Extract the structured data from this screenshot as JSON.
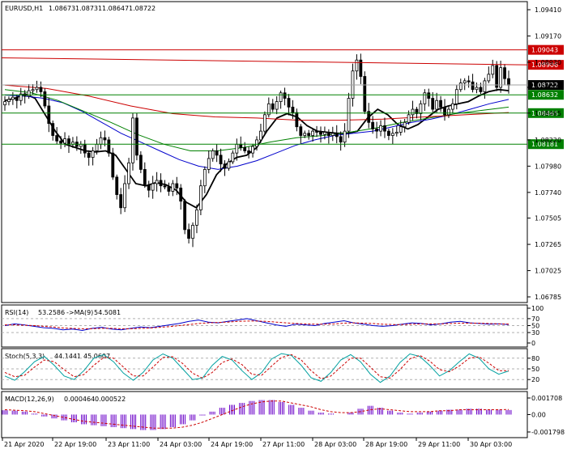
{
  "header": {
    "symbol": "EURUSD,H1",
    "ohlc": [
      "1.08673",
      "1.08731",
      "1.08647",
      "1.08722"
    ]
  },
  "colors": {
    "background": "#ffffff",
    "frame": "#000000",
    "level_line": "#008000",
    "resistance_line": "#cc0000",
    "price_tag_current": "#000000",
    "price_tag_green": "#008000",
    "price_tag_red": "#cc0000",
    "ma_black": "#000000",
    "ma_blue": "#0000cc",
    "ma_green": "#008000",
    "ma_red": "#cc0000",
    "candle": "#000000",
    "rsi_line": "#0000cc",
    "rsi_signal": "#cc0000",
    "stoch_main": "#00a0a0",
    "stoch_signal": "#cc0000",
    "macd_hist": "#6a00c8",
    "macd_signal": "#cc0000"
  },
  "chart_data": [
    {
      "type": "candlestick",
      "series": [
        {
          "name": "EURUSD,H1"
        }
      ],
      "y_ticks": [
        "1.09410",
        "1.09170",
        "1.08930",
        "1.08700",
        "1.08465",
        "1.08220",
        "1.07980",
        "1.07740",
        "1.07505",
        "1.07265",
        "1.07025",
        "1.06785"
      ],
      "ylim": [
        1.06785,
        1.0941
      ],
      "x_ticks": [
        "21 Apr 2020",
        "22 Apr 19:00",
        "23 Apr 11:00",
        "24 Apr 03:00",
        "24 Apr 19:00",
        "27 Apr 11:00",
        "28 Apr 03:00",
        "28 Apr 19:00",
        "29 Apr 11:00",
        "30 Apr 03:00"
      ],
      "horizontal_levels": [
        {
          "value": 1.08632,
          "label": "1.08632",
          "color": "#008000"
        },
        {
          "value": 1.08465,
          "label": "1.08465",
          "color": "#008000"
        },
        {
          "value": 1.08181,
          "label": "1.08181",
          "color": "#008000"
        },
        {
          "value": 1.09043,
          "label": "1.09043",
          "color": "#cc0000"
        }
      ],
      "trend_line": {
        "label": "1.08906",
        "from": 1.0897,
        "to": 1.08906,
        "color": "#cc0000"
      },
      "current_price": {
        "value": 1.08722,
        "label": "1.08722"
      },
      "close_path": [
        1.0857,
        1.0859,
        1.0861,
        1.0858,
        1.0864,
        1.0862,
        1.0867,
        1.0868,
        1.087,
        1.0866,
        1.0853,
        1.0837,
        1.0826,
        1.0821,
        1.0819,
        1.0823,
        1.0818,
        1.082,
        1.0816,
        1.0818,
        1.081,
        1.0806,
        1.0812,
        1.0818,
        1.0824,
        1.0822,
        1.081,
        1.0788,
        1.0772,
        1.076,
        1.0782,
        1.0801,
        1.0842,
        1.0808,
        1.0795,
        1.0781,
        1.0776,
        1.0782,
        1.0785,
        1.078,
        1.0779,
        1.0775,
        1.0782,
        1.0778,
        1.0766,
        1.074,
        1.0732,
        1.0744,
        1.0758,
        1.078,
        1.0795,
        1.0805,
        1.0812,
        1.0808,
        1.08,
        1.0796,
        1.0802,
        1.081,
        1.0818,
        1.0815,
        1.0812,
        1.081,
        1.0816,
        1.0822,
        1.083,
        1.0845,
        1.0855,
        1.085,
        1.0857,
        1.0865,
        1.086,
        1.0852,
        1.0847,
        1.0834,
        1.0826,
        1.0828,
        1.0826,
        1.083,
        1.0829,
        1.0827,
        1.0829,
        1.0826,
        1.0828,
        1.0825,
        1.082,
        1.083,
        1.086,
        1.0885,
        1.0895,
        1.088,
        1.0848,
        1.0838,
        1.0832,
        1.083,
        1.0835,
        1.083,
        1.0826,
        1.0828,
        1.0829,
        1.0834,
        1.0838,
        1.0845,
        1.085,
        1.0846,
        1.0855,
        1.0865,
        1.086,
        1.085,
        1.0858,
        1.0852,
        1.0845,
        1.085,
        1.0855,
        1.0868,
        1.0874,
        1.0876,
        1.0875,
        1.0868,
        1.087,
        1.0866,
        1.0876,
        1.0882,
        1.089,
        1.087,
        1.0888,
        1.0878,
        1.0872
      ],
      "ma_lines": [
        {
          "name": "black",
          "color": "#000000",
          "points": [
            1.0858,
            1.086,
            1.0864,
            1.086,
            1.0845,
            1.083,
            1.0818,
            1.0815,
            1.0812,
            1.0811,
            1.0812,
            1.0808,
            1.0795,
            1.0782,
            1.078,
            1.0783,
            1.0781,
            1.0776,
            1.0765,
            1.076,
            1.0772,
            1.079,
            1.08,
            1.0806,
            1.0808,
            1.0815,
            1.083,
            1.0842,
            1.0846,
            1.0843,
            1.0835,
            1.083,
            1.0829,
            1.0828,
            1.0828,
            1.083,
            1.0842,
            1.085,
            1.0845,
            1.0836,
            1.0832,
            1.0836,
            1.0843,
            1.085,
            1.0853,
            1.0855,
            1.0857,
            1.0862,
            1.0866,
            1.0868,
            1.0867
          ]
        },
        {
          "name": "blue",
          "color": "#0000cc",
          "points": [
            1.0863,
            1.0862,
            1.086,
            1.0856,
            1.0848,
            1.0838,
            1.0828,
            1.082,
            1.0812,
            1.0804,
            1.0798,
            1.0795,
            1.0798,
            1.0803,
            1.081,
            1.0817,
            1.0822,
            1.0826,
            1.0828,
            1.083,
            1.0834,
            1.0838,
            1.0841,
            1.0845,
            1.085,
            1.0855,
            1.0859
          ]
        },
        {
          "name": "green",
          "color": "#008000",
          "points": [
            1.0868,
            1.0865,
            1.0858,
            1.0848,
            1.0838,
            1.0827,
            1.0818,
            1.0812,
            1.0812,
            1.0815,
            1.082,
            1.0824,
            1.0826,
            1.0829,
            1.0833,
            1.0838,
            1.0842,
            1.0846,
            1.0849,
            1.0852
          ]
        },
        {
          "name": "red",
          "color": "#cc0000",
          "points": [
            1.0872,
            1.0869,
            1.0862,
            1.0853,
            1.0846,
            1.0843,
            1.0842,
            1.084,
            1.084,
            1.0841,
            1.0843,
            1.0845,
            1.0847
          ]
        }
      ]
    },
    {
      "type": "line",
      "title": "RSI(14) 53.2586 ->MA(9) 54.5081",
      "title_parts": {
        "name": "RSI(14)",
        "value": "53.2586",
        "ma": "->MA(9)",
        "ma_value": "54.5081"
      },
      "y_ticks": [
        "100",
        "70",
        "50",
        "30",
        "0"
      ],
      "ylim": [
        0,
        100
      ],
      "levels": [
        70,
        50,
        30
      ],
      "series": [
        {
          "name": "RSI(14)",
          "color": "#0000cc",
          "values": [
            50,
            55,
            52,
            48,
            44,
            42,
            38,
            40,
            36,
            42,
            45,
            40,
            38,
            42,
            46,
            44,
            48,
            52,
            56,
            62,
            66,
            60,
            58,
            62,
            66,
            70,
            64,
            58,
            52,
            48,
            54,
            52,
            50,
            56,
            60,
            64,
            58,
            54,
            50,
            48,
            50,
            54,
            58,
            56,
            52,
            55,
            60,
            62,
            58,
            56,
            54,
            55,
            53
          ]
        },
        {
          "name": "MA(9)",
          "color": "#cc0000",
          "values": [
            52,
            52,
            51,
            50,
            48,
            46,
            43,
            42,
            41,
            41,
            42,
            42,
            41,
            41,
            42,
            43,
            45,
            47,
            50,
            53,
            56,
            58,
            59,
            60,
            62,
            63,
            63,
            62,
            60,
            58,
            56,
            55,
            54,
            54,
            55,
            57,
            58,
            57,
            56,
            54,
            53,
            53,
            54,
            55,
            55,
            55,
            56,
            57,
            57,
            57,
            56,
            55,
            54.5
          ]
        }
      ]
    },
    {
      "type": "line",
      "title": "Stoch(5,3,3) 44.1441 45.0607",
      "title_parts": {
        "name": "Stoch(5,3,3)",
        "main": "44.1441",
        "signal": "45.0607"
      },
      "y_ticks": [
        "80",
        "50",
        "20"
      ],
      "ylim": [
        0,
        100
      ],
      "levels": [
        80,
        50,
        20
      ],
      "series": [
        {
          "name": "Main",
          "color": "#00a0a0",
          "values": [
            30,
            18,
            42,
            70,
            85,
            60,
            30,
            20,
            45,
            80,
            90,
            70,
            38,
            18,
            40,
            75,
            92,
            80,
            50,
            20,
            24,
            60,
            85,
            75,
            45,
            20,
            40,
            78,
            93,
            88,
            60,
            25,
            15,
            40,
            75,
            90,
            70,
            35,
            12,
            30,
            68,
            92,
            85,
            60,
            30,
            45,
            70,
            92,
            80,
            50,
            35,
            44
          ]
        },
        {
          "name": "Signal",
          "color": "#cc0000",
          "values": [
            40,
            28,
            32,
            55,
            75,
            70,
            48,
            28,
            34,
            60,
            82,
            80,
            55,
            30,
            30,
            55,
            82,
            84,
            65,
            38,
            24,
            40,
            68,
            78,
            62,
            35,
            32,
            58,
            82,
            90,
            75,
            45,
            22,
            30,
            55,
            80,
            80,
            55,
            28,
            24,
            48,
            78,
            88,
            72,
            48,
            42,
            58,
            80,
            84,
            66,
            45,
            45
          ]
        }
      ]
    },
    {
      "type": "bar",
      "title": "MACD(12,26,9) 0.000464 0.000522",
      "title_parts": {
        "name": "MACD(12,26,9)",
        "main": "0.000464",
        "signal": "0.000522"
      },
      "y_ticks": [
        "0.001708",
        "0.00",
        "-0.001798"
      ],
      "ylim": [
        -0.001798,
        0.001708
      ],
      "series": [
        {
          "name": "MACD",
          "color": "#6a00c8",
          "values": [
            0.00045,
            0.0004,
            0.0003,
            0.0001,
            -0.0002,
            -0.0004,
            -0.0006,
            -0.0008,
            -0.001,
            -0.0011,
            -0.0012,
            -0.0013,
            -0.0014,
            -0.0015,
            -0.0016,
            -0.0016,
            -0.0015,
            -0.0013,
            -0.001,
            -0.0006,
            -0.0001,
            0.0003,
            0.0007,
            0.001,
            0.0012,
            0.0014,
            0.0015,
            0.0015,
            0.0013,
            0.001,
            0.0007,
            0.0004,
            0.0002,
            0.0001,
            0.0,
            0.0002,
            0.0006,
            0.0009,
            0.0007,
            0.0004,
            0.0002,
            0.0001,
            0.0002,
            0.0003,
            0.0004,
            0.0005,
            0.0005,
            0.0006,
            0.0006,
            0.0005,
            0.0005,
            0.000464
          ]
        },
        {
          "name": "Signal",
          "color": "#cc0000",
          "values": [
            0.0005,
            0.00045,
            0.0004,
            0.0003,
            0.0001,
            -0.0001,
            -0.0003,
            -0.0005,
            -0.0007,
            -0.0008,
            -0.0009,
            -0.001,
            -0.0011,
            -0.0012,
            -0.0013,
            -0.0014,
            -0.0014,
            -0.0014,
            -0.0013,
            -0.0011,
            -0.0008,
            -0.0004,
            0.0,
            0.0004,
            0.0008,
            0.0011,
            0.0013,
            0.0014,
            0.0014,
            0.0012,
            0.001,
            0.0008,
            0.0005,
            0.0003,
            0.0002,
            0.0002,
            0.0003,
            0.0005,
            0.0006,
            0.0005,
            0.0004,
            0.0003,
            0.0003,
            0.0003,
            0.0004,
            0.0004,
            0.0005,
            0.0005,
            0.0005,
            0.0005,
            0.0005,
            0.000522
          ]
        }
      ]
    }
  ]
}
